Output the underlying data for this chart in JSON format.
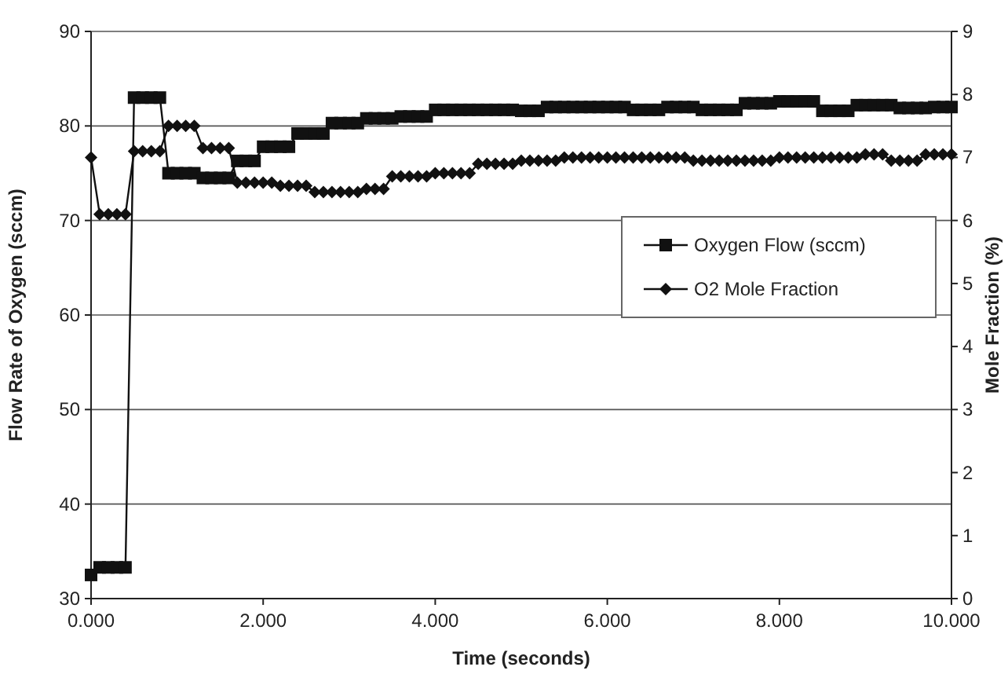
{
  "chart_data": {
    "type": "line",
    "xlabel": "Time (seconds)",
    "ylabel": "Flow Rate of Oxygen (sccm)",
    "y2label": "Mole Fraction (%)",
    "x": [
      0,
      0.1,
      0.2,
      0.3,
      0.4,
      0.5,
      0.6,
      0.7,
      0.8,
      0.9,
      1,
      1.1,
      1.2,
      1.3,
      1.4,
      1.5,
      1.6,
      1.7,
      1.8,
      1.9,
      2,
      2.1,
      2.2,
      2.3,
      2.4,
      2.5,
      2.6,
      2.7,
      2.8,
      2.9,
      3,
      3.1,
      3.2,
      3.3,
      3.4,
      3.5,
      3.6,
      3.7,
      3.8,
      3.9,
      4,
      4.1,
      4.2,
      4.3,
      4.4,
      4.5,
      4.6,
      4.7,
      4.8,
      4.9,
      5,
      5.1,
      5.2,
      5.3,
      5.4,
      5.5,
      5.6,
      5.7,
      5.8,
      5.9,
      6,
      6.1,
      6.2,
      6.3,
      6.4,
      6.5,
      6.6,
      6.7,
      6.8,
      6.9,
      7,
      7.1,
      7.2,
      7.3,
      7.4,
      7.5,
      7.6,
      7.7,
      7.8,
      7.9,
      8,
      8.1,
      8.2,
      8.3,
      8.4,
      8.5,
      8.6,
      8.7,
      8.8,
      8.9,
      9,
      9.1,
      9.2,
      9.3,
      9.4,
      9.5,
      9.6,
      9.7,
      9.8,
      9.9,
      10
    ],
    "series": [
      {
        "name": "Oxygen Flow (sccm)",
        "color": "#111111",
        "marker": "square",
        "values": [
          32.5,
          33.3,
          33.3,
          33.3,
          33.3,
          83,
          83,
          83,
          83,
          75,
          75,
          75,
          75,
          74.5,
          74.5,
          74.5,
          74.5,
          76.3,
          76.3,
          76.3,
          77.8,
          77.8,
          77.8,
          77.8,
          79.2,
          79.2,
          79.2,
          79.2,
          80.3,
          80.3,
          80.3,
          80.3,
          80.8,
          80.8,
          80.8,
          80.8,
          81,
          81,
          81,
          81,
          81.7,
          81.7,
          81.7,
          81.7,
          81.7,
          81.7,
          81.7,
          81.7,
          81.7,
          81.7,
          81.6,
          81.6,
          81.6,
          82,
          82,
          82,
          82,
          82,
          82,
          82,
          82,
          82,
          82,
          81.7,
          81.7,
          81.7,
          81.7,
          82,
          82,
          82,
          82,
          81.7,
          81.7,
          81.7,
          81.7,
          81.7,
          82.4,
          82.4,
          82.4,
          82.4,
          82.6,
          82.6,
          82.6,
          82.6,
          82.6,
          81.6,
          81.6,
          81.6,
          81.6,
          82.2,
          82.2,
          82.2,
          82.2,
          82.2,
          81.9,
          81.9,
          81.9,
          81.9,
          82,
          82,
          82
        ]
      },
      {
        "name": "O2 Mole Fraction",
        "color": "#111111",
        "marker": "diamond",
        "axis": "y2",
        "values": [
          7,
          6.1,
          6.1,
          6.1,
          6.1,
          7.1,
          7.1,
          7.1,
          7.1,
          7.5,
          7.5,
          7.5,
          7.5,
          7.15,
          7.15,
          7.15,
          7.15,
          6.6,
          6.6,
          6.6,
          6.6,
          6.6,
          6.55,
          6.55,
          6.55,
          6.55,
          6.45,
          6.45,
          6.45,
          6.45,
          6.45,
          6.45,
          6.5,
          6.5,
          6.5,
          6.7,
          6.7,
          6.7,
          6.7,
          6.7,
          6.75,
          6.75,
          6.75,
          6.75,
          6.75,
          6.9,
          6.9,
          6.9,
          6.9,
          6.9,
          6.95,
          6.95,
          6.95,
          6.95,
          6.95,
          7,
          7,
          7,
          7,
          7,
          7,
          7,
          7,
          7,
          7,
          7,
          7,
          7,
          7,
          7,
          6.95,
          6.95,
          6.95,
          6.95,
          6.95,
          6.95,
          6.95,
          6.95,
          6.95,
          6.95,
          7,
          7,
          7,
          7,
          7,
          7,
          7,
          7,
          7,
          7,
          7.05,
          7.05,
          7.05,
          6.95,
          6.95,
          6.95,
          6.95,
          7.05,
          7.05,
          7.05,
          7.05
        ]
      }
    ],
    "xlim": [
      0,
      10
    ],
    "xticks": [
      {
        "value": 0,
        "label": "0.000"
      },
      {
        "value": 2,
        "label": "2.000"
      },
      {
        "value": 4,
        "label": "4.000"
      },
      {
        "value": 6,
        "label": "6.000"
      },
      {
        "value": 8,
        "label": "8.000"
      },
      {
        "value": 10,
        "label": "10.000"
      }
    ],
    "ylim": [
      30,
      90
    ],
    "yticks": [
      30,
      40,
      50,
      60,
      70,
      80,
      90
    ],
    "y2lim": [
      0,
      9
    ],
    "y2ticks": [
      0,
      1,
      2,
      3,
      4,
      5,
      6,
      7,
      8,
      9
    ],
    "grid": "y",
    "legend": "right"
  }
}
